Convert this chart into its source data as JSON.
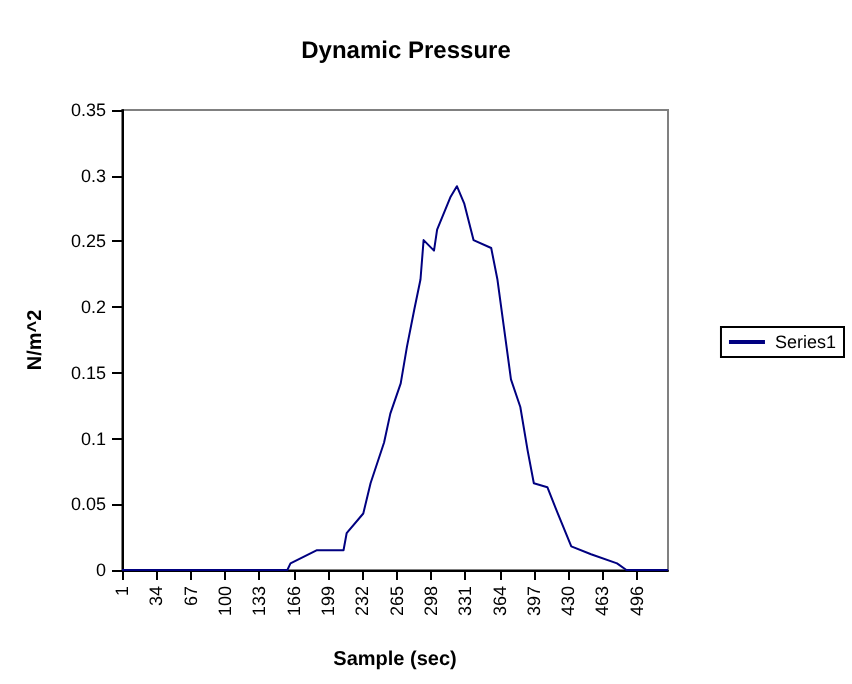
{
  "chart_data": {
    "type": "line",
    "title": "Dynamic Pressure",
    "xlabel": "Sample (sec)",
    "ylabel": "N/m^2",
    "series": [
      {
        "name": "Series1",
        "color": "#000080",
        "x": [
          1,
          160,
          163,
          188,
          214,
          217,
          233,
          240,
          253,
          259,
          269,
          275,
          282,
          288,
          291,
          301,
          304,
          317,
          323,
          330,
          339,
          356,
          362,
          368,
          375,
          384,
          391,
          397,
          410,
          420,
          433,
          452,
          477,
          486,
          526
        ],
        "values": [
          0,
          0,
          0.005,
          0.015,
          0.015,
          0.028,
          0.043,
          0.066,
          0.097,
          0.119,
          0.142,
          0.17,
          0.198,
          0.221,
          0.251,
          0.243,
          0.259,
          0.284,
          0.292,
          0.279,
          0.251,
          0.245,
          0.221,
          0.186,
          0.145,
          0.124,
          0.091,
          0.066,
          0.063,
          0.043,
          0.018,
          0.012,
          0.005,
          0,
          0
        ]
      }
    ],
    "xlim": [
      1,
      526
    ],
    "xticks": [
      1,
      34,
      67,
      100,
      133,
      166,
      199,
      232,
      265,
      298,
      331,
      364,
      397,
      430,
      463,
      496
    ],
    "ylim": [
      0,
      0.35
    ],
    "yticks": [
      0,
      0.05,
      0.1,
      0.15,
      0.2,
      0.25,
      0.3,
      0.35
    ],
    "grid": false,
    "legend": "right",
    "marker": "none",
    "line_style": "solid"
  }
}
